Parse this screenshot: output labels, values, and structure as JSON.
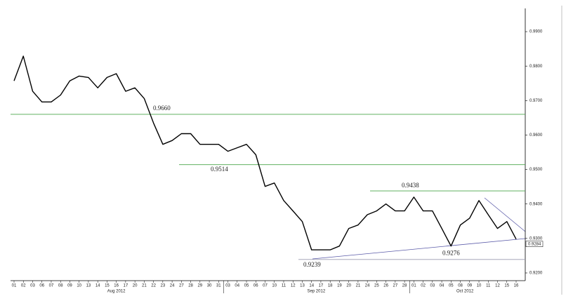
{
  "chart_data": {
    "type": "line",
    "categories": [
      "01",
      "02",
      "03",
      "06",
      "07",
      "08",
      "09",
      "10",
      "13",
      "14",
      "15",
      "16",
      "17",
      "20",
      "21",
      "22",
      "23",
      "24",
      "27",
      "28",
      "29",
      "30",
      "31",
      "03",
      "04",
      "05",
      "06",
      "07",
      "10",
      "11",
      "12",
      "13",
      "14",
      "17",
      "18",
      "19",
      "20",
      "21",
      "24",
      "25",
      "26",
      "27",
      "28",
      "01",
      "02",
      "03",
      "04",
      "05",
      "08",
      "09",
      "10",
      "11",
      "12",
      "15",
      "16"
    ],
    "month_labels": [
      "Aug 2012",
      "Sep 2012",
      "Oct 2012"
    ],
    "series": [
      {
        "color": "#000000",
        "values": [
          0.9757,
          0.9829,
          0.9727,
          0.9696,
          0.9696,
          0.9716,
          0.9757,
          0.9771,
          0.9767,
          0.9737,
          0.9767,
          0.9778,
          0.9727,
          0.9737,
          0.9706,
          0.9635,
          0.9573,
          0.9584,
          0.9604,
          0.9604,
          0.9573,
          0.9573,
          0.9573,
          0.9553,
          0.9563,
          0.9573,
          0.9543,
          0.9451,
          0.9461,
          0.941,
          0.938,
          0.9349,
          0.9267,
          0.9267,
          0.9267,
          0.9278,
          0.9329,
          0.9339,
          0.9369,
          0.938,
          0.94,
          0.938,
          0.938,
          0.942,
          0.938,
          0.938,
          0.9329,
          0.9278,
          0.9339,
          0.9359,
          0.941,
          0.9369,
          0.9329,
          0.9349,
          0.9298
        ]
      }
    ],
    "ylim": [
      0.91776,
      0.99673
    ],
    "yticks": [
      {
        "value": 0.92,
        "label": "0.9200"
      },
      {
        "value": 0.93,
        "label": "0.9300"
      },
      {
        "value": 0.94,
        "label": "0.9400"
      },
      {
        "value": 0.95,
        "label": "0.9500"
      },
      {
        "value": 0.96,
        "label": "0.9600"
      },
      {
        "value": 0.97,
        "label": "0.9700"
      },
      {
        "value": 0.98,
        "label": "0.9800"
      },
      {
        "value": 0.99,
        "label": "0.9900"
      }
    ],
    "levels": [
      {
        "value": 0.966,
        "label": "0.9660"
      },
      {
        "value": 0.9514,
        "label": "0.9514"
      },
      {
        "value": 0.9438,
        "label": "0.9438"
      },
      {
        "value": 0.9239,
        "label": "0.9239"
      }
    ],
    "annotations": [
      {
        "value": 0.9276,
        "label": "0.9276"
      }
    ],
    "last_price": {
      "value": 0.9284,
      "label": "0.9284"
    }
  }
}
